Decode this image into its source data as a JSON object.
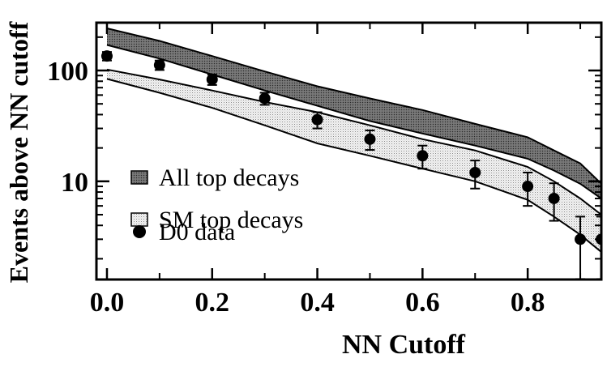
{
  "chart_data": {
    "type": "line",
    "xlabel": "NN Cutoff",
    "ylabel": "Events above NN cutoff",
    "xlim": [
      -0.02,
      0.94
    ],
    "ylim": [
      1.3,
      270
    ],
    "yscale": "log",
    "x_ticks": [
      {
        "value": 0.0,
        "label": "0.0"
      },
      {
        "value": 0.2,
        "label": "0.2"
      },
      {
        "value": 0.4,
        "label": "0.4"
      },
      {
        "value": 0.6,
        "label": "0.6"
      },
      {
        "value": 0.8,
        "label": "0.8"
      }
    ],
    "y_ticks": [
      {
        "value": 10,
        "label": "10"
      },
      {
        "value": 100,
        "label": "100"
      }
    ],
    "grid": false,
    "legend_position": "lower-left",
    "series": [
      {
        "name": "All top decays",
        "kind": "band",
        "fill": "dark-hatched",
        "x": [
          0.0,
          0.1,
          0.2,
          0.3,
          0.4,
          0.5,
          0.6,
          0.7,
          0.8,
          0.85,
          0.9,
          0.94
        ],
        "upper": [
          240,
          185,
          135,
          98,
          72,
          56,
          44,
          33,
          25,
          19,
          14.5,
          9.5
        ],
        "lower": [
          170,
          128,
          92,
          66,
          48,
          35,
          27,
          21,
          16,
          12.5,
          9.5,
          7.0
        ]
      },
      {
        "name": "SM top decays",
        "kind": "band",
        "fill": "light-dotted",
        "x": [
          0.0,
          0.1,
          0.2,
          0.3,
          0.4,
          0.5,
          0.6,
          0.7,
          0.8,
          0.85,
          0.9,
          0.94
        ],
        "upper": [
          102,
          83,
          66,
          52,
          42,
          32,
          24,
          19,
          13.5,
          10,
          7,
          5.0
        ],
        "lower": [
          84,
          63,
          46,
          32,
          22,
          17,
          13,
          10,
          6.8,
          4.8,
          3.3,
          2.3
        ]
      },
      {
        "name": "D0 data",
        "kind": "points",
        "x": [
          0.0,
          0.1,
          0.2,
          0.3,
          0.4,
          0.5,
          0.6,
          0.7,
          0.8,
          0.85,
          0.9,
          0.94
        ],
        "y": [
          135,
          112,
          83,
          56,
          36,
          24,
          17,
          12,
          9,
          7,
          3,
          3
        ],
        "err_low": [
          12,
          11,
          9,
          7,
          6,
          4.8,
          4,
          3.4,
          3,
          2.6,
          1.8,
          1.8
        ],
        "err_high": [
          12,
          11,
          9,
          7,
          6,
          4.8,
          4,
          3.4,
          3,
          2.6,
          1.8,
          1.8
        ]
      }
    ]
  }
}
